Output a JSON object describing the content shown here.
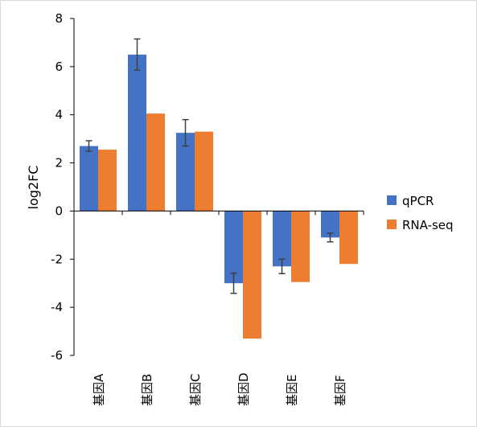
{
  "chart_data": {
    "type": "bar",
    "categories": [
      "基因A",
      "基因B",
      "基因C",
      "基因D",
      "基因E",
      "基因F"
    ],
    "series": [
      {
        "name": "qPCR",
        "color": "#4472C4",
        "values": [
          2.7,
          6.5,
          3.25,
          -3.0,
          -2.3,
          -1.1
        ],
        "errors": [
          0.22,
          0.65,
          0.55,
          0.42,
          0.3,
          0.18
        ]
      },
      {
        "name": "RNA-seq",
        "color": "#ED7D31",
        "values": [
          2.55,
          4.05,
          3.3,
          -5.3,
          -2.95,
          -2.2
        ]
      }
    ],
    "ylabel": "log2FC",
    "xlabel": "",
    "ylim": [
      -6,
      8
    ],
    "yticks": [
      "8",
      "6",
      "4",
      "2",
      "0",
      "-2",
      "-4",
      "-6"
    ],
    "grid": false,
    "legend": "right"
  }
}
